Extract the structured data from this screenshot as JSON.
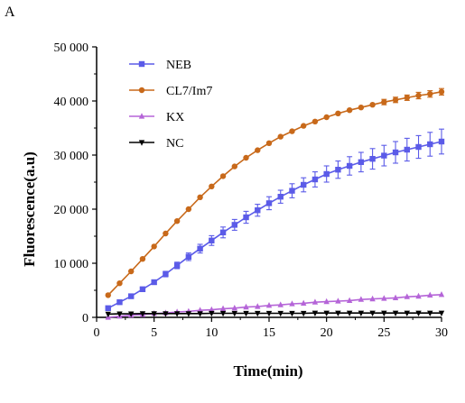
{
  "panel_label": "A",
  "chart_data": {
    "type": "line",
    "xlabel": "Time(min)",
    "ylabel": "Fluorescence(a.u)",
    "xlim": [
      0,
      30
    ],
    "ylim": [
      0,
      50000
    ],
    "x_ticks": [
      0,
      5,
      10,
      15,
      20,
      25,
      30
    ],
    "x_tick_labels": [
      "0",
      "5",
      "10",
      "15",
      "20",
      "25",
      "30"
    ],
    "y_ticks": [
      0,
      10000,
      20000,
      30000,
      40000,
      50000
    ],
    "y_tick_labels": [
      "0",
      "10 000",
      "20 000",
      "30 000",
      "40 000",
      "50 000"
    ],
    "grid": false,
    "legend_position": "top-left",
    "x": [
      1,
      2,
      3,
      4,
      5,
      6,
      7,
      8,
      9,
      10,
      11,
      12,
      13,
      14,
      15,
      16,
      17,
      18,
      19,
      20,
      21,
      22,
      23,
      24,
      25,
      26,
      27,
      28,
      29,
      30
    ],
    "series": [
      {
        "name": "NEB",
        "color": "#5b5be8",
        "marker": "square",
        "values": [
          1700,
          2800,
          3900,
          5200,
          6500,
          8000,
          9600,
          11200,
          12700,
          14200,
          15700,
          17100,
          18500,
          19800,
          21100,
          22300,
          23400,
          24500,
          25500,
          26500,
          27300,
          28000,
          28700,
          29300,
          29900,
          30500,
          31000,
          31500,
          32000,
          32500
        ],
        "error": [
          100,
          150,
          200,
          300,
          400,
          500,
          600,
          700,
          800,
          900,
          1000,
          1000,
          1100,
          1100,
          1200,
          1200,
          1300,
          1300,
          1400,
          1500,
          1600,
          1700,
          1800,
          1900,
          1900,
          2000,
          2100,
          2100,
          2200,
          2300
        ]
      },
      {
        "name": "CL7/Im7",
        "color": "#c8691a",
        "marker": "circle",
        "values": [
          4100,
          6300,
          8500,
          10800,
          13100,
          15500,
          17800,
          20000,
          22200,
          24200,
          26100,
          27900,
          29500,
          30900,
          32200,
          33400,
          34400,
          35400,
          36200,
          37000,
          37700,
          38300,
          38800,
          39300,
          39800,
          40200,
          40600,
          41000,
          41300,
          41700
        ],
        "error": [
          0,
          0,
          0,
          0,
          0,
          0,
          0,
          0,
          0,
          0,
          0,
          0,
          0,
          0,
          0,
          0,
          0,
          0,
          0,
          0,
          0,
          0,
          0,
          0,
          500,
          500,
          500,
          600,
          600,
          600
        ]
      },
      {
        "name": "KX",
        "color": "#b565d8",
        "marker": "triangle-up",
        "values": [
          0,
          200,
          400,
          500,
          700,
          800,
          1000,
          1100,
          1300,
          1400,
          1600,
          1700,
          1900,
          2000,
          2200,
          2300,
          2500,
          2600,
          2800,
          2900,
          3000,
          3100,
          3300,
          3400,
          3500,
          3600,
          3800,
          3900,
          4100,
          4200
        ],
        "error": [
          0,
          0,
          0,
          0,
          0,
          0,
          0,
          0,
          0,
          0,
          0,
          0,
          0,
          0,
          0,
          0,
          0,
          0,
          0,
          0,
          0,
          0,
          0,
          0,
          0,
          0,
          0,
          0,
          0,
          0
        ]
      },
      {
        "name": "NC",
        "color": "#000000",
        "marker": "triangle-down",
        "values": [
          600,
          650,
          650,
          700,
          700,
          700,
          700,
          700,
          700,
          750,
          750,
          750,
          750,
          750,
          750,
          750,
          750,
          750,
          800,
          800,
          800,
          800,
          800,
          800,
          800,
          800,
          800,
          800,
          800,
          800
        ],
        "error": [
          0,
          0,
          0,
          0,
          0,
          0,
          0,
          0,
          0,
          0,
          0,
          0,
          0,
          0,
          0,
          0,
          0,
          0,
          0,
          0,
          0,
          0,
          0,
          0,
          0,
          0,
          0,
          0,
          0,
          0
        ]
      }
    ]
  }
}
